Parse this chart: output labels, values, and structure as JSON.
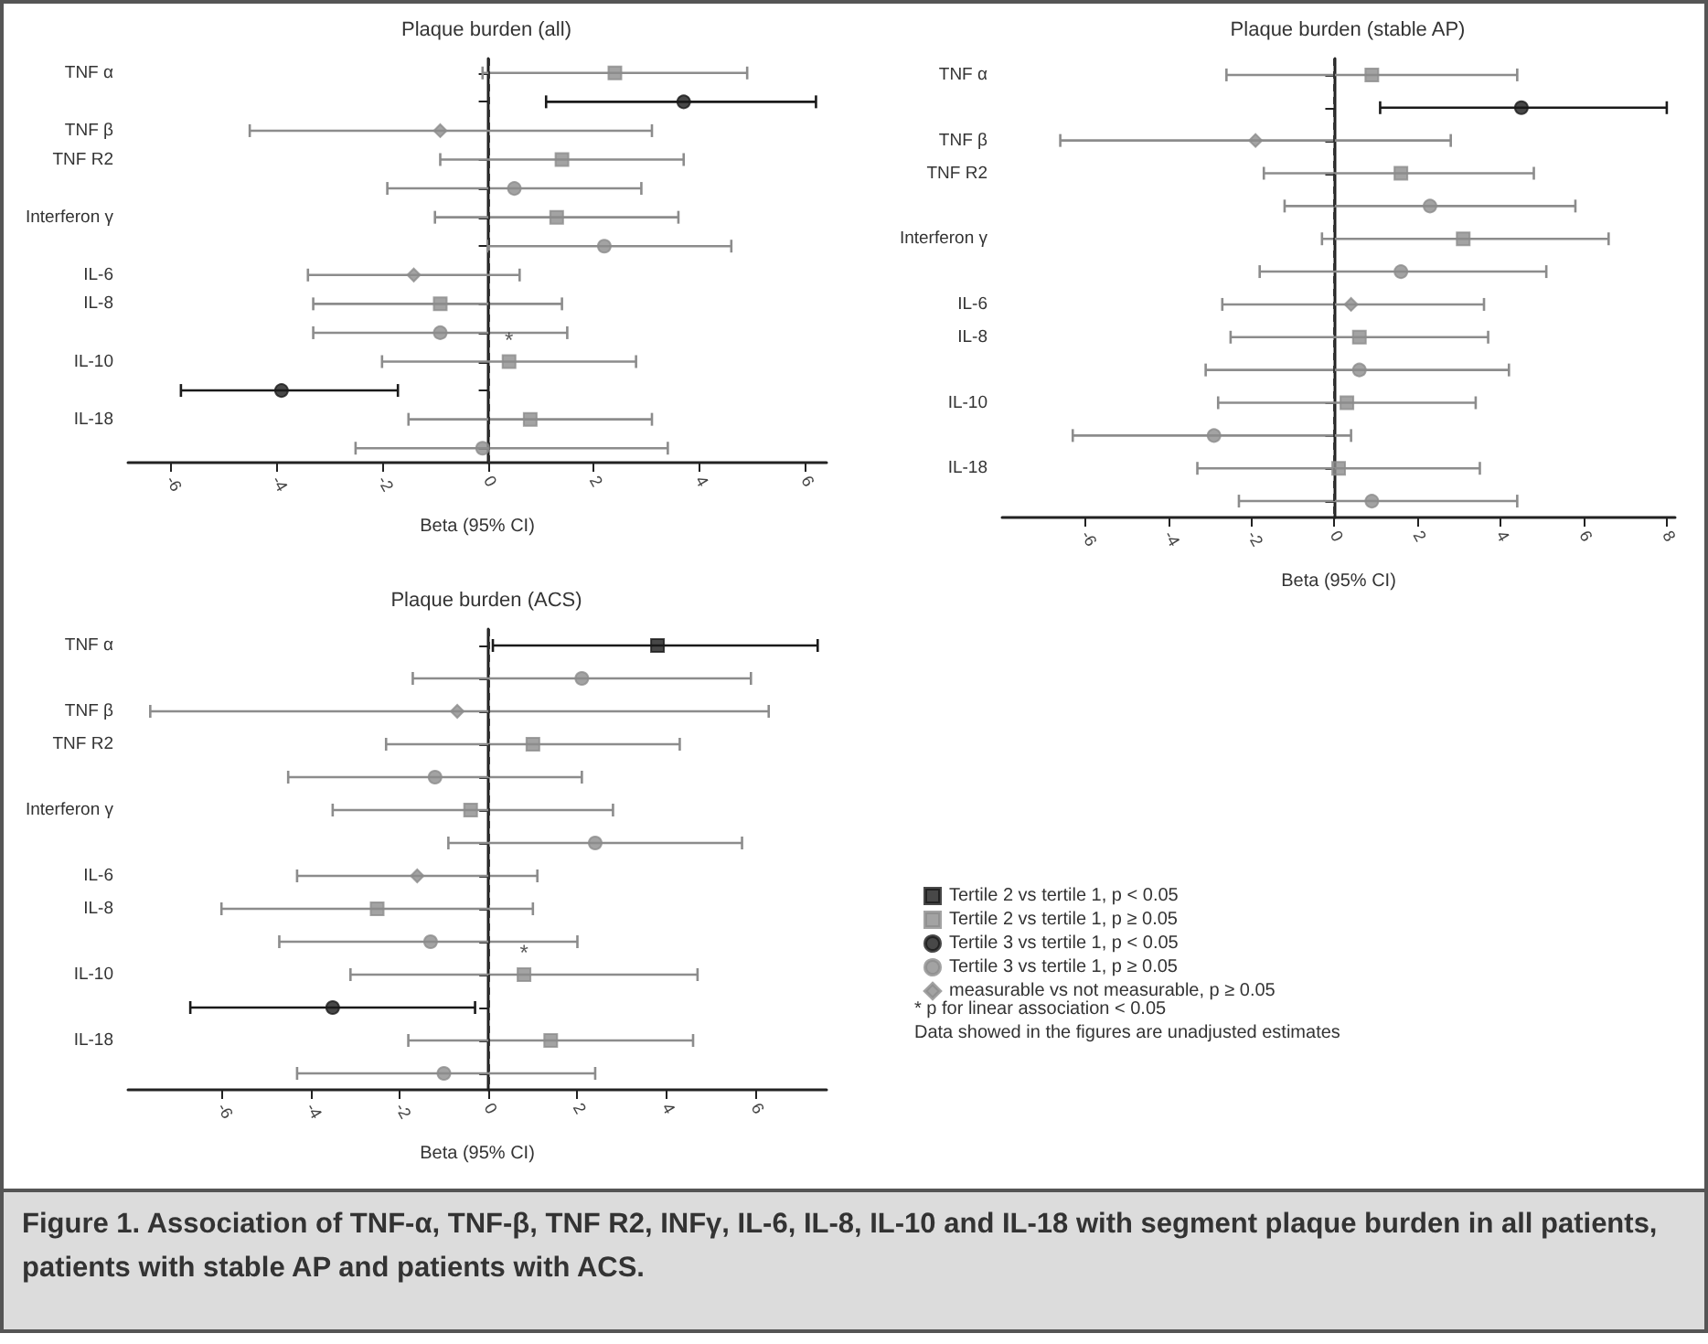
{
  "chart_data": [
    {
      "type": "scatter",
      "orientation": "horizontal",
      "title": "Plaque burden (all)",
      "xlabel": "Beta (95% CI)",
      "categories": [
        "TNF α",
        null,
        "TNF β",
        "TNF R2",
        null,
        "Interferon γ",
        null,
        "IL-6",
        "IL-8",
        null,
        "IL-10",
        null,
        "IL-18",
        null
      ],
      "xlim": [
        -6.8,
        6.4
      ],
      "xticks": [
        -6,
        -4,
        -2,
        0,
        2,
        4,
        6
      ],
      "grid": false,
      "legend": false,
      "series": [
        {
          "color": "#8c8c8c",
          "marker": "square",
          "values": [
            2.4,
            null,
            null,
            1.4,
            null,
            1.3,
            null,
            null,
            -0.9,
            null,
            0.4,
            null,
            0.8,
            null
          ],
          "errors": [
            [
              -0.1,
              4.9
            ],
            null,
            null,
            [
              -0.9,
              3.7
            ],
            null,
            [
              -1.0,
              3.6
            ],
            null,
            null,
            [
              -3.3,
              1.4
            ],
            null,
            [
              -2.0,
              2.8
            ],
            null,
            [
              -1.5,
              3.1
            ],
            null
          ],
          "value_labels": [
            null,
            null,
            null,
            null,
            null,
            null,
            null,
            null,
            null,
            null,
            "*",
            null,
            null,
            null
          ]
        },
        {
          "color": "#1a1a1a",
          "marker": "circle",
          "values": [
            null,
            3.7,
            null,
            null,
            null,
            null,
            null,
            null,
            null,
            null,
            null,
            -3.9,
            null,
            null
          ],
          "errors": [
            null,
            [
              1.1,
              6.2
            ],
            null,
            null,
            null,
            null,
            null,
            null,
            null,
            null,
            null,
            [
              -5.8,
              -1.7
            ],
            null,
            null
          ]
        },
        {
          "color": "#8c8c8c",
          "marker": "circle",
          "values": [
            null,
            null,
            null,
            null,
            0.5,
            null,
            2.2,
            null,
            null,
            -0.9,
            null,
            null,
            null,
            -0.1
          ],
          "errors": [
            null,
            null,
            null,
            null,
            [
              -1.9,
              2.9
            ],
            null,
            [
              0.0,
              4.6
            ],
            null,
            null,
            [
              -3.3,
              1.5
            ],
            null,
            null,
            null,
            [
              -2.5,
              3.4
            ]
          ]
        },
        {
          "color": "#8c8c8c",
          "marker": "diamond",
          "values": [
            null,
            null,
            -0.9,
            null,
            null,
            null,
            null,
            -1.4,
            null,
            null,
            null,
            null,
            null,
            null
          ],
          "errors": [
            null,
            null,
            [
              -4.5,
              3.1
            ],
            null,
            null,
            null,
            null,
            [
              -3.4,
              0.6
            ],
            null,
            null,
            null,
            null,
            null,
            null
          ]
        }
      ],
      "ref_lines": [
        {
          "axis": "x",
          "value": 0,
          "line_style": "dashed",
          "color": "#333333"
        }
      ],
      "annotations": [
        "Figure 1. Association of TNF-α, TNF-β, TNF R2, INFγ, IL-6, IL-8, IL-10 and IL-18 with segment plaque burden in all patients, patients with stable AP and patients with ACS."
      ]
    },
    {
      "type": "scatter",
      "orientation": "horizontal",
      "title": "Plaque burden (stable AP)",
      "xlabel": "Beta (95% CI)",
      "categories": [
        "TNF α",
        null,
        "TNF β",
        "TNF R2",
        null,
        "Interferon γ",
        null,
        "IL-6",
        "IL-8",
        null,
        "IL-10",
        null,
        "IL-18",
        null
      ],
      "xlim": [
        -8,
        8.2
      ],
      "xticks": [
        -6,
        -4,
        -2,
        0,
        2,
        4,
        6,
        8
      ],
      "grid": false,
      "legend": false,
      "series": [
        {
          "color": "#8c8c8c",
          "marker": "square",
          "values": [
            0.9,
            null,
            null,
            1.6,
            null,
            3.1,
            null,
            null,
            0.6,
            null,
            0.3,
            null,
            0.1,
            null
          ],
          "errors": [
            [
              -2.6,
              4.4
            ],
            null,
            null,
            [
              -1.7,
              4.8
            ],
            null,
            [
              -0.3,
              6.6
            ],
            null,
            null,
            [
              -2.5,
              3.7
            ],
            null,
            [
              -2.8,
              3.4
            ],
            null,
            [
              -3.3,
              3.5
            ],
            null
          ]
        },
        {
          "color": "#1a1a1a",
          "marker": "circle",
          "values": [
            null,
            4.5,
            null,
            null,
            null,
            null,
            null,
            null,
            null,
            null,
            null,
            null,
            null,
            null
          ],
          "errors": [
            null,
            [
              1.1,
              8.0
            ],
            null,
            null,
            null,
            null,
            null,
            null,
            null,
            null,
            null,
            null,
            null,
            null
          ]
        },
        {
          "color": "#8c8c8c",
          "marker": "circle",
          "values": [
            null,
            null,
            null,
            null,
            2.3,
            null,
            1.6,
            null,
            null,
            0.6,
            null,
            -2.9,
            null,
            0.9
          ],
          "errors": [
            null,
            null,
            null,
            null,
            [
              -1.2,
              5.8
            ],
            null,
            [
              -1.8,
              5.1
            ],
            null,
            null,
            [
              -3.1,
              4.2
            ],
            null,
            [
              -6.3,
              0.4
            ],
            null,
            [
              -2.3,
              4.4
            ]
          ]
        },
        {
          "color": "#8c8c8c",
          "marker": "diamond",
          "values": [
            null,
            null,
            -1.9,
            null,
            null,
            null,
            null,
            0.4,
            null,
            null,
            null,
            null,
            null,
            null
          ],
          "errors": [
            null,
            null,
            [
              -6.6,
              2.8
            ],
            null,
            null,
            null,
            null,
            [
              -2.7,
              3.6
            ],
            null,
            null,
            null,
            null,
            null,
            null
          ]
        }
      ],
      "ref_lines": [
        {
          "axis": "x",
          "value": 0,
          "line_style": "dashed",
          "color": "#333333"
        }
      ]
    },
    {
      "type": "scatter",
      "orientation": "horizontal",
      "title": "Plaque burden (ACS)",
      "xlabel": "Beta (95% CI)",
      "categories": [
        "TNF α",
        null,
        "TNF β",
        "TNF R2",
        null,
        "Interferon γ",
        null,
        "IL-6",
        "IL-8",
        null,
        "IL-10",
        null,
        "IL-18",
        null
      ],
      "xlim": [
        -8.1,
        7.6
      ],
      "xticks": [
        -6,
        -4,
        -2,
        0,
        2,
        4,
        6
      ],
      "grid": false,
      "legend": "right",
      "series": [
        {
          "name": "Tertile 2 vs tertile 1, p < 0.05",
          "color": "#1a1a1a",
          "marker": "square",
          "values": [
            3.8,
            null,
            null,
            null,
            null,
            null,
            null,
            null,
            null,
            null,
            null,
            null,
            null,
            null
          ],
          "errors": [
            [
              0.1,
              7.4
            ],
            null,
            null,
            null,
            null,
            null,
            null,
            null,
            null,
            null,
            null,
            null,
            null,
            null
          ]
        },
        {
          "name": "Tertile 2 vs tertile 1, p ≥ 0.05",
          "color": "#8c8c8c",
          "marker": "square",
          "values": [
            null,
            null,
            null,
            1.0,
            null,
            -0.4,
            null,
            null,
            -2.5,
            null,
            0.8,
            null,
            1.4,
            null
          ],
          "errors": [
            null,
            null,
            null,
            [
              -2.3,
              4.3
            ],
            null,
            [
              -3.5,
              2.8
            ],
            null,
            null,
            [
              -6.0,
              1.0
            ],
            null,
            [
              -3.1,
              4.7
            ],
            null,
            [
              -1.8,
              4.6
            ],
            null
          ],
          "value_labels": [
            null,
            null,
            null,
            null,
            null,
            null,
            null,
            null,
            null,
            null,
            "*",
            null,
            null,
            null
          ]
        },
        {
          "name": "Tertile 3 vs tertile 1, p < 0.05",
          "color": "#1a1a1a",
          "marker": "circle",
          "values": [
            null,
            null,
            null,
            null,
            null,
            null,
            null,
            null,
            null,
            null,
            null,
            -3.5,
            null,
            null
          ],
          "errors": [
            null,
            null,
            null,
            null,
            null,
            null,
            null,
            null,
            null,
            null,
            null,
            [
              -6.7,
              -0.3
            ],
            null,
            null
          ]
        },
        {
          "name": "Tertile 3 vs tertile 1, p ≥ 0.05",
          "color": "#8c8c8c",
          "marker": "circle",
          "values": [
            null,
            2.1,
            null,
            null,
            -1.2,
            null,
            2.4,
            null,
            null,
            -1.3,
            null,
            null,
            null,
            -1.0
          ],
          "errors": [
            null,
            [
              -1.7,
              5.9
            ],
            null,
            null,
            [
              -4.5,
              2.1
            ],
            null,
            [
              -0.9,
              5.7
            ],
            null,
            null,
            [
              -4.7,
              2.0
            ],
            null,
            null,
            null,
            [
              -4.3,
              2.4
            ]
          ]
        },
        {
          "name": "measurable vs not measurable, p ≥ 0.05",
          "color": "#8c8c8c",
          "marker": "diamond",
          "values": [
            null,
            null,
            -0.7,
            null,
            null,
            null,
            null,
            -1.6,
            null,
            null,
            null,
            null,
            null,
            null
          ],
          "errors": [
            null,
            null,
            [
              -7.6,
              6.3
            ],
            null,
            null,
            null,
            null,
            [
              -4.3,
              1.1
            ],
            null,
            null,
            null,
            null,
            null,
            null
          ]
        }
      ],
      "ref_lines": [
        {
          "axis": "x",
          "value": 0,
          "line_style": "dashed",
          "color": "#333333"
        }
      ],
      "annotations": [
        "* p for linear association < 0.05",
        "Data showed in the figures are unadjusted estimates"
      ]
    }
  ]
}
